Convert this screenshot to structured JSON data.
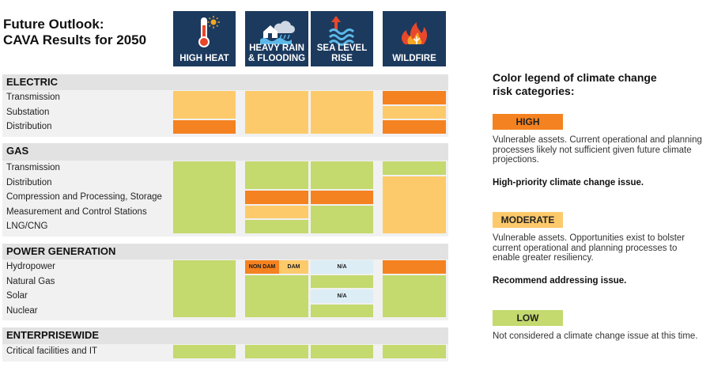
{
  "title": {
    "line1": "Future Outlook:",
    "line2": "CAVA Results for 2050"
  },
  "hazards": [
    {
      "id": "heat",
      "label_lines": [
        "HIGH HEAT"
      ],
      "icon": "thermometer-sun-icon"
    },
    {
      "id": "rain",
      "label_lines": [
        "HEAVY RAIN",
        "& FLOODING"
      ],
      "icon": "rain-flood-icon"
    },
    {
      "id": "sea",
      "label_lines": [
        "SEA LEVEL",
        "RISE"
      ],
      "icon": "sea-level-rise-icon"
    },
    {
      "id": "fire",
      "label_lines": [
        "WILDFIRE"
      ],
      "icon": "wildfire-icon"
    }
  ],
  "colors": {
    "HIGH": "#f58220",
    "MODERATE": "#fdca6b",
    "LOW": "#c4d96e",
    "NA": "#dcedf5",
    "header_bg": "#1c3a5e"
  },
  "chart_data": {
    "type": "table",
    "columns": [
      "HIGH HEAT",
      "HEAVY RAIN & FLOODING",
      "SEA LEVEL RISE",
      "WILDFIRE"
    ],
    "sections": [
      {
        "name": "ELECTRIC",
        "rows": [
          "Transmission",
          "Substation",
          "Distribution"
        ],
        "cells": [
          {
            "col": 0,
            "segments": [
              {
                "rows": [
                  0,
                  1
                ],
                "risk": "MODERATE"
              },
              {
                "rows": [
                  2,
                  2
                ],
                "risk": "HIGH"
              }
            ]
          },
          {
            "col": 1,
            "segments": [
              {
                "rows": [
                  0,
                  2
                ],
                "risk": "MODERATE"
              }
            ]
          },
          {
            "col": 2,
            "segments": [
              {
                "rows": [
                  0,
                  2
                ],
                "risk": "MODERATE"
              }
            ]
          },
          {
            "col": 3,
            "segments": [
              {
                "rows": [
                  0,
                  0
                ],
                "risk": "HIGH"
              },
              {
                "rows": [
                  1,
                  1
                ],
                "risk": "MODERATE"
              },
              {
                "rows": [
                  2,
                  2
                ],
                "risk": "HIGH"
              }
            ]
          }
        ]
      },
      {
        "name": "GAS",
        "rows": [
          "Transmission",
          "Distribution",
          "Compression and Processing, Storage",
          "Measurement and Control Stations",
          "LNG/CNG"
        ],
        "cells": [
          {
            "col": 0,
            "segments": [
              {
                "rows": [
                  0,
                  4
                ],
                "risk": "LOW"
              }
            ]
          },
          {
            "col": 1,
            "segments": [
              {
                "rows": [
                  0,
                  1
                ],
                "risk": "LOW"
              },
              {
                "rows": [
                  2,
                  2
                ],
                "risk": "HIGH"
              },
              {
                "rows": [
                  3,
                  3
                ],
                "risk": "MODERATE"
              },
              {
                "rows": [
                  4,
                  4
                ],
                "risk": "LOW"
              }
            ]
          },
          {
            "col": 2,
            "segments": [
              {
                "rows": [
                  0,
                  1
                ],
                "risk": "LOW"
              },
              {
                "rows": [
                  2,
                  2
                ],
                "risk": "HIGH"
              },
              {
                "rows": [
                  3,
                  4
                ],
                "risk": "LOW"
              }
            ]
          },
          {
            "col": 3,
            "segments": [
              {
                "rows": [
                  0,
                  0
                ],
                "risk": "LOW"
              },
              {
                "rows": [
                  1,
                  4
                ],
                "risk": "MODERATE"
              }
            ]
          }
        ]
      },
      {
        "name": "POWER GENERATION",
        "rows": [
          "Hydropower",
          "Natural Gas",
          "Solar",
          "Nuclear"
        ],
        "cells": [
          {
            "col": 0,
            "segments": [
              {
                "rows": [
                  0,
                  3
                ],
                "risk": "LOW"
              }
            ]
          },
          {
            "col": 1,
            "segments": [
              {
                "rows": [
                  0,
                  0
                ],
                "risk": "HIGH",
                "part": "left",
                "text": "NON DAM"
              },
              {
                "rows": [
                  0,
                  0
                ],
                "risk": "MODERATE",
                "part": "right",
                "text": "DAM"
              },
              {
                "rows": [
                  1,
                  3
                ],
                "risk": "LOW"
              }
            ]
          },
          {
            "col": 2,
            "segments": [
              {
                "rows": [
                  0,
                  0
                ],
                "risk": "NA",
                "text": "N/A"
              },
              {
                "rows": [
                  1,
                  1
                ],
                "risk": "LOW"
              },
              {
                "rows": [
                  2,
                  2
                ],
                "risk": "NA",
                "text": "N/A"
              },
              {
                "rows": [
                  3,
                  3
                ],
                "risk": "LOW"
              }
            ]
          },
          {
            "col": 3,
            "segments": [
              {
                "rows": [
                  0,
                  0
                ],
                "risk": "HIGH"
              },
              {
                "rows": [
                  1,
                  3
                ],
                "risk": "LOW"
              }
            ]
          }
        ]
      },
      {
        "name": "ENTERPRISEWIDE",
        "rows": [
          "Critical facilities and IT"
        ],
        "cells": [
          {
            "col": 0,
            "segments": [
              {
                "rows": [
                  0,
                  0
                ],
                "risk": "LOW"
              }
            ]
          },
          {
            "col": 1,
            "segments": [
              {
                "rows": [
                  0,
                  0
                ],
                "risk": "LOW"
              }
            ]
          },
          {
            "col": 2,
            "segments": [
              {
                "rows": [
                  0,
                  0
                ],
                "risk": "LOW"
              }
            ]
          },
          {
            "col": 3,
            "segments": [
              {
                "rows": [
                  0,
                  0
                ],
                "risk": "LOW"
              }
            ]
          }
        ]
      }
    ]
  },
  "legend": {
    "title_line1": "Color legend of climate change",
    "title_line2": "risk categories:",
    "items": [
      {
        "risk": "HIGH",
        "label": "HIGH",
        "desc": "Vulnerable assets. Current operational and planning processes likely not sufficient given future climate projections.",
        "note": "High-priority climate change issue."
      },
      {
        "risk": "MODERATE",
        "label": "MODERATE",
        "desc": "Vulnerable assets. Opportunities exist to bolster current operational and planning processes to enable greater resiliency.",
        "note": "Recommend addressing issue."
      },
      {
        "risk": "LOW",
        "label": "LOW",
        "desc": "Not considered a climate change issue at this time.",
        "note": ""
      }
    ]
  }
}
